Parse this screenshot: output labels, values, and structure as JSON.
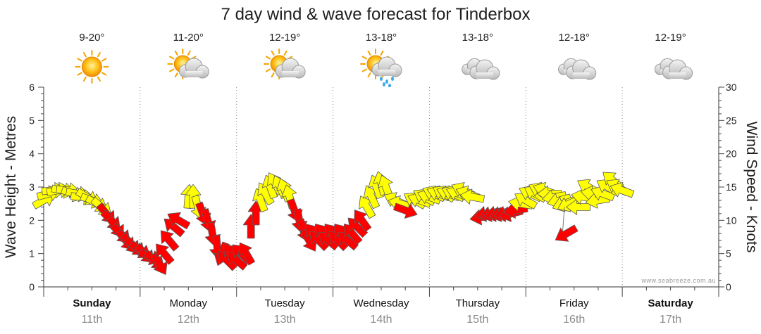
{
  "chart_data": {
    "type": "line",
    "title": "7 day wind & wave forecast for Tinderbox",
    "ylabel_left": "Wave Height - Metres",
    "ylabel_right": "Wind Speed - Knots",
    "ylim_left": [
      0,
      6
    ],
    "ylim_right": [
      0,
      30
    ],
    "yticks_left": [
      "0",
      "1",
      "2",
      "3",
      "4",
      "5",
      "6"
    ],
    "yticks_right": [
      "0",
      "5",
      "10",
      "15",
      "20",
      "25",
      "30"
    ],
    "grid": "dotted vertical day dividers",
    "watermark": "www.seabreeze.com.au",
    "colors": {
      "wind_light": "#ffff00",
      "wind_strong": "#ff0000",
      "outline": "#555555",
      "grid": "#999999"
    },
    "days": [
      {
        "day": "Sunday",
        "date": "11th",
        "temp": "9-20°",
        "icon": "sun-icon",
        "bold": true
      },
      {
        "day": "Monday",
        "date": "12th",
        "temp": "11-20°",
        "icon": "sun-cloud-icon",
        "bold": false
      },
      {
        "day": "Tuesday",
        "date": "13th",
        "temp": "12-19°",
        "icon": "sun-cloud-icon",
        "bold": false
      },
      {
        "day": "Wednesday",
        "date": "14th",
        "temp": "13-18°",
        "icon": "sun-cloud-rain-icon",
        "bold": false
      },
      {
        "day": "Thursday",
        "date": "15th",
        "temp": "13-18°",
        "icon": "cloud-icon",
        "bold": false
      },
      {
        "day": "Friday",
        "date": "16th",
        "temp": "12-18°",
        "icon": "cloud-icon",
        "bold": false
      },
      {
        "day": "Saturday",
        "date": "17th",
        "temp": "12-19°",
        "icon": "cloud-icon",
        "bold": true
      }
    ],
    "series": [
      {
        "name": "Wind",
        "units": "knots",
        "points": [
          {
            "t": 0.0,
            "v": 13,
            "dir": 60
          },
          {
            "t": 0.05,
            "v": 14,
            "dir": 75
          },
          {
            "t": 0.1,
            "v": 14.5,
            "dir": 85
          },
          {
            "t": 0.15,
            "v": 14.5,
            "dir": 80
          },
          {
            "t": 0.2,
            "v": 14.5,
            "dir": 100
          },
          {
            "t": 0.25,
            "v": 14.5,
            "dir": 95
          },
          {
            "t": 0.3,
            "v": 14,
            "dir": 110
          },
          {
            "t": 0.35,
            "v": 14,
            "dir": 100
          },
          {
            "t": 0.4,
            "v": 13.5,
            "dir": 95
          },
          {
            "t": 0.45,
            "v": 13.5,
            "dir": 120
          },
          {
            "t": 0.5,
            "v": 13,
            "dir": 110
          },
          {
            "t": 0.55,
            "v": 12.5,
            "dir": 120
          },
          {
            "t": 0.6,
            "v": 12,
            "dir": 130
          },
          {
            "t": 0.65,
            "v": 11,
            "dir": 140
          },
          {
            "t": 0.7,
            "v": 10,
            "dir": 135
          },
          {
            "t": 0.75,
            "v": 9,
            "dir": 145
          },
          {
            "t": 0.8,
            "v": 8,
            "dir": 135
          },
          {
            "t": 0.85,
            "v": 7,
            "dir": 140
          },
          {
            "t": 0.9,
            "v": 6.5,
            "dir": 140
          },
          {
            "t": 0.95,
            "v": 6,
            "dir": 130
          },
          {
            "t": 1.0,
            "v": 5.5,
            "dir": 125
          },
          {
            "t": 1.05,
            "v": 5,
            "dir": 135
          },
          {
            "t": 1.1,
            "v": 4.5,
            "dir": 115
          },
          {
            "t": 1.15,
            "v": 4,
            "dir": 130
          },
          {
            "t": 1.2,
            "v": 3.5,
            "dir": 150
          },
          {
            "t": 1.25,
            "v": 5,
            "dir": -40
          },
          {
            "t": 1.3,
            "v": 7,
            "dir": -40
          },
          {
            "t": 1.35,
            "v": 9,
            "dir": -50
          },
          {
            "t": 1.4,
            "v": 10,
            "dir": -60
          },
          {
            "t": 1.5,
            "v": 13.5,
            "dir": 5
          },
          {
            "t": 1.55,
            "v": 13.5,
            "dir": 0
          },
          {
            "t": 1.6,
            "v": 12,
            "dir": 165
          },
          {
            "t": 1.65,
            "v": 11,
            "dir": 160
          },
          {
            "t": 1.7,
            "v": 10,
            "dir": 165
          },
          {
            "t": 1.75,
            "v": 8,
            "dir": 170
          },
          {
            "t": 1.8,
            "v": 6,
            "dir": 175
          },
          {
            "t": 1.85,
            "v": 5,
            "dir": 200
          },
          {
            "t": 1.9,
            "v": 4,
            "dir": -45
          },
          {
            "t": 1.95,
            "v": 5,
            "dir": -40
          },
          {
            "t": 2.0,
            "v": 4,
            "dir": -50
          },
          {
            "t": 2.05,
            "v": 5,
            "dir": -45
          },
          {
            "t": 2.1,
            "v": 5,
            "dir": -30
          },
          {
            "t": 2.15,
            "v": 9,
            "dir": 0
          },
          {
            "t": 2.2,
            "v": 11,
            "dir": 0
          },
          {
            "t": 2.25,
            "v": 13,
            "dir": -20
          },
          {
            "t": 2.3,
            "v": 14,
            "dir": -30
          },
          {
            "t": 2.35,
            "v": 15,
            "dir": -20
          },
          {
            "t": 2.4,
            "v": 15.5,
            "dir": -30
          },
          {
            "t": 2.45,
            "v": 15,
            "dir": -25
          },
          {
            "t": 2.5,
            "v": 14.5,
            "dir": -20
          },
          {
            "t": 2.55,
            "v": 13.5,
            "dir": -15
          },
          {
            "t": 2.6,
            "v": 11.5,
            "dir": 160
          },
          {
            "t": 2.65,
            "v": 10,
            "dir": 170
          },
          {
            "t": 2.7,
            "v": 8.5,
            "dir": 160
          },
          {
            "t": 2.75,
            "v": 7,
            "dir": 150
          },
          {
            "t": 2.8,
            "v": 8,
            "dir": -40
          },
          {
            "t": 2.85,
            "v": 7,
            "dir": -45
          },
          {
            "t": 2.9,
            "v": 8,
            "dir": -40
          },
          {
            "t": 2.95,
            "v": 7,
            "dir": -50
          },
          {
            "t": 3.0,
            "v": 8,
            "dir": -40
          },
          {
            "t": 3.05,
            "v": 7,
            "dir": -45
          },
          {
            "t": 3.1,
            "v": 8,
            "dir": -40
          },
          {
            "t": 3.15,
            "v": 7,
            "dir": -50
          },
          {
            "t": 3.2,
            "v": 8,
            "dir": -40
          },
          {
            "t": 3.25,
            "v": 9,
            "dir": -45
          },
          {
            "t": 3.3,
            "v": 10,
            "dir": -35
          },
          {
            "t": 3.35,
            "v": 12,
            "dir": -30
          },
          {
            "t": 3.4,
            "v": 13.5,
            "dir": -25
          },
          {
            "t": 3.45,
            "v": 15,
            "dir": -20
          },
          {
            "t": 3.5,
            "v": 15.5,
            "dir": -15
          },
          {
            "t": 3.55,
            "v": 15,
            "dir": -20
          },
          {
            "t": 3.65,
            "v": 13,
            "dir": -65
          },
          {
            "t": 3.7,
            "v": 12.5,
            "dir": -75
          },
          {
            "t": 3.75,
            "v": 11.5,
            "dir": 110
          },
          {
            "t": 3.85,
            "v": 13,
            "dir": -60
          },
          {
            "t": 3.9,
            "v": 13,
            "dir": -70
          },
          {
            "t": 3.95,
            "v": 13.5,
            "dir": -60
          },
          {
            "t": 4.0,
            "v": 13.5,
            "dir": -70
          },
          {
            "t": 4.05,
            "v": 14,
            "dir": -65
          },
          {
            "t": 4.1,
            "v": 14,
            "dir": -70
          },
          {
            "t": 4.15,
            "v": 14,
            "dir": -60
          },
          {
            "t": 4.2,
            "v": 14,
            "dir": -70
          },
          {
            "t": 4.25,
            "v": 14,
            "dir": -65
          },
          {
            "t": 4.3,
            "v": 14,
            "dir": -70
          },
          {
            "t": 4.35,
            "v": 14.5,
            "dir": -65
          },
          {
            "t": 4.4,
            "v": 14,
            "dir": -70
          },
          {
            "t": 4.45,
            "v": 13.5,
            "dir": -80
          },
          {
            "t": 4.55,
            "v": 10.5,
            "dir": -100
          },
          {
            "t": 4.6,
            "v": 11,
            "dir": -100
          },
          {
            "t": 4.65,
            "v": 11,
            "dir": -105
          },
          {
            "t": 4.7,
            "v": 11,
            "dir": -100
          },
          {
            "t": 4.75,
            "v": 11,
            "dir": -105
          },
          {
            "t": 4.8,
            "v": 11,
            "dir": -100
          },
          {
            "t": 4.85,
            "v": 11,
            "dir": -105
          },
          {
            "t": 4.9,
            "v": 11.5,
            "dir": -100
          },
          {
            "t": 4.95,
            "v": 12.5,
            "dir": -80
          },
          {
            "t": 5.0,
            "v": 13,
            "dir": -60
          },
          {
            "t": 5.05,
            "v": 14,
            "dir": -65
          },
          {
            "t": 5.1,
            "v": 14,
            "dir": -60
          },
          {
            "t": 5.15,
            "v": 14.5,
            "dir": -65
          },
          {
            "t": 5.2,
            "v": 14.5,
            "dir": -70
          },
          {
            "t": 5.25,
            "v": 14,
            "dir": -90
          },
          {
            "t": 5.3,
            "v": 13.5,
            "dir": -100
          },
          {
            "t": 5.35,
            "v": 13,
            "dir": -105
          },
          {
            "t": 5.4,
            "v": 12.5,
            "dir": -110
          },
          {
            "t": 5.45,
            "v": 12.5,
            "dir": -115
          },
          {
            "t": 5.55,
            "v": 12,
            "dir": -90
          },
          {
            "t": 5.6,
            "v": 13.5,
            "dir": -80
          },
          {
            "t": 5.65,
            "v": 15,
            "dir": -60
          },
          {
            "t": 5.7,
            "v": 14,
            "dir": -80
          },
          {
            "t": 5.75,
            "v": 13,
            "dir": -100
          },
          {
            "t": 5.8,
            "v": 14,
            "dir": -70
          },
          {
            "t": 5.85,
            "v": 15,
            "dir": -60
          },
          {
            "t": 5.9,
            "v": 16,
            "dir": -50
          },
          {
            "t": 5.95,
            "v": 15,
            "dir": -60
          },
          {
            "t": 6.0,
            "v": 14.5,
            "dir": -70
          }
        ]
      },
      {
        "name": "Wave height",
        "units": "metres",
        "points": []
      }
    ]
  }
}
